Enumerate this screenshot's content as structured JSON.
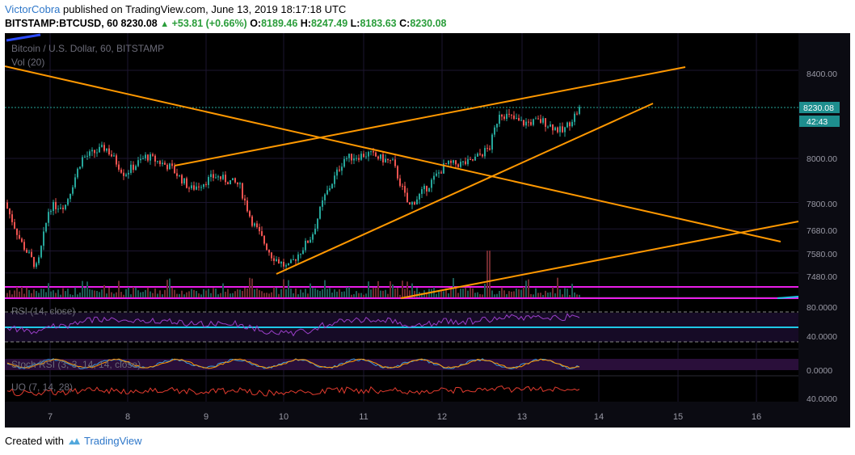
{
  "header": {
    "author": "VictorCobra",
    "published_text": " published on TradingView.com, June 13, 2019 18:17:18 UTC",
    "symbol": "BITSTAMP:BTCUSD, 60",
    "last": "8230.08",
    "change": "+53.81 (+0.66%)",
    "o_label": "O:",
    "o_val": "8189.46",
    "h_label": "H:",
    "h_val": "8247.49",
    "l_label": "L:",
    "l_val": "8183.63",
    "c_label": "C:",
    "c_val": "8230.08"
  },
  "chart": {
    "legend_title": "Bitcoin / U.S. Dollar, 60, BITSTAMP",
    "vol_label": "Vol (20)",
    "rsi_label": "RSI (14, close)",
    "stoch_label": "Stoch RSI (3, 3, 14, 14, close)",
    "uo_label": "UO (7, 14, 28)",
    "price_badge": "8230.08",
    "timer_badge": "42:43",
    "price_ticks": [
      "8400.00",
      "8000.00",
      "7800.00",
      "7680.00",
      "7580.00",
      "7480.00"
    ],
    "rsi_ticks": [
      "80.0000",
      "40.0000"
    ],
    "stoch_ticks": [
      "0.0000"
    ],
    "uo_ticks": [
      "40.0000"
    ],
    "x_ticks": [
      "7",
      "8",
      "9",
      "10",
      "11",
      "12",
      "13",
      "14",
      "15",
      "16"
    ]
  },
  "chart_data": {
    "type": "candlestick",
    "symbol": "BITSTAMP:BTCUSD",
    "interval": "60",
    "last_price": 8230.08,
    "x": [
      "7",
      "8",
      "9",
      "10",
      "11",
      "12",
      "13"
    ],
    "close": [
      7780,
      8010,
      7950,
      7580,
      8010,
      7900,
      8230.08
    ],
    "high": [
      7860,
      8130,
      8060,
      8110,
      8090,
      8247.49,
      8247.49
    ],
    "low": [
      7480,
      7850,
      7820,
      7450,
      7770,
      7810,
      8040
    ],
    "colors": {
      "up": "#26a69a",
      "down": "#ef5350",
      "trendline": "#ff9800",
      "rsi_band": "#1ec8e6",
      "volume_band": "#e91ee8"
    }
  },
  "footer": {
    "created_with": "Created with",
    "brand": "TradingView"
  }
}
